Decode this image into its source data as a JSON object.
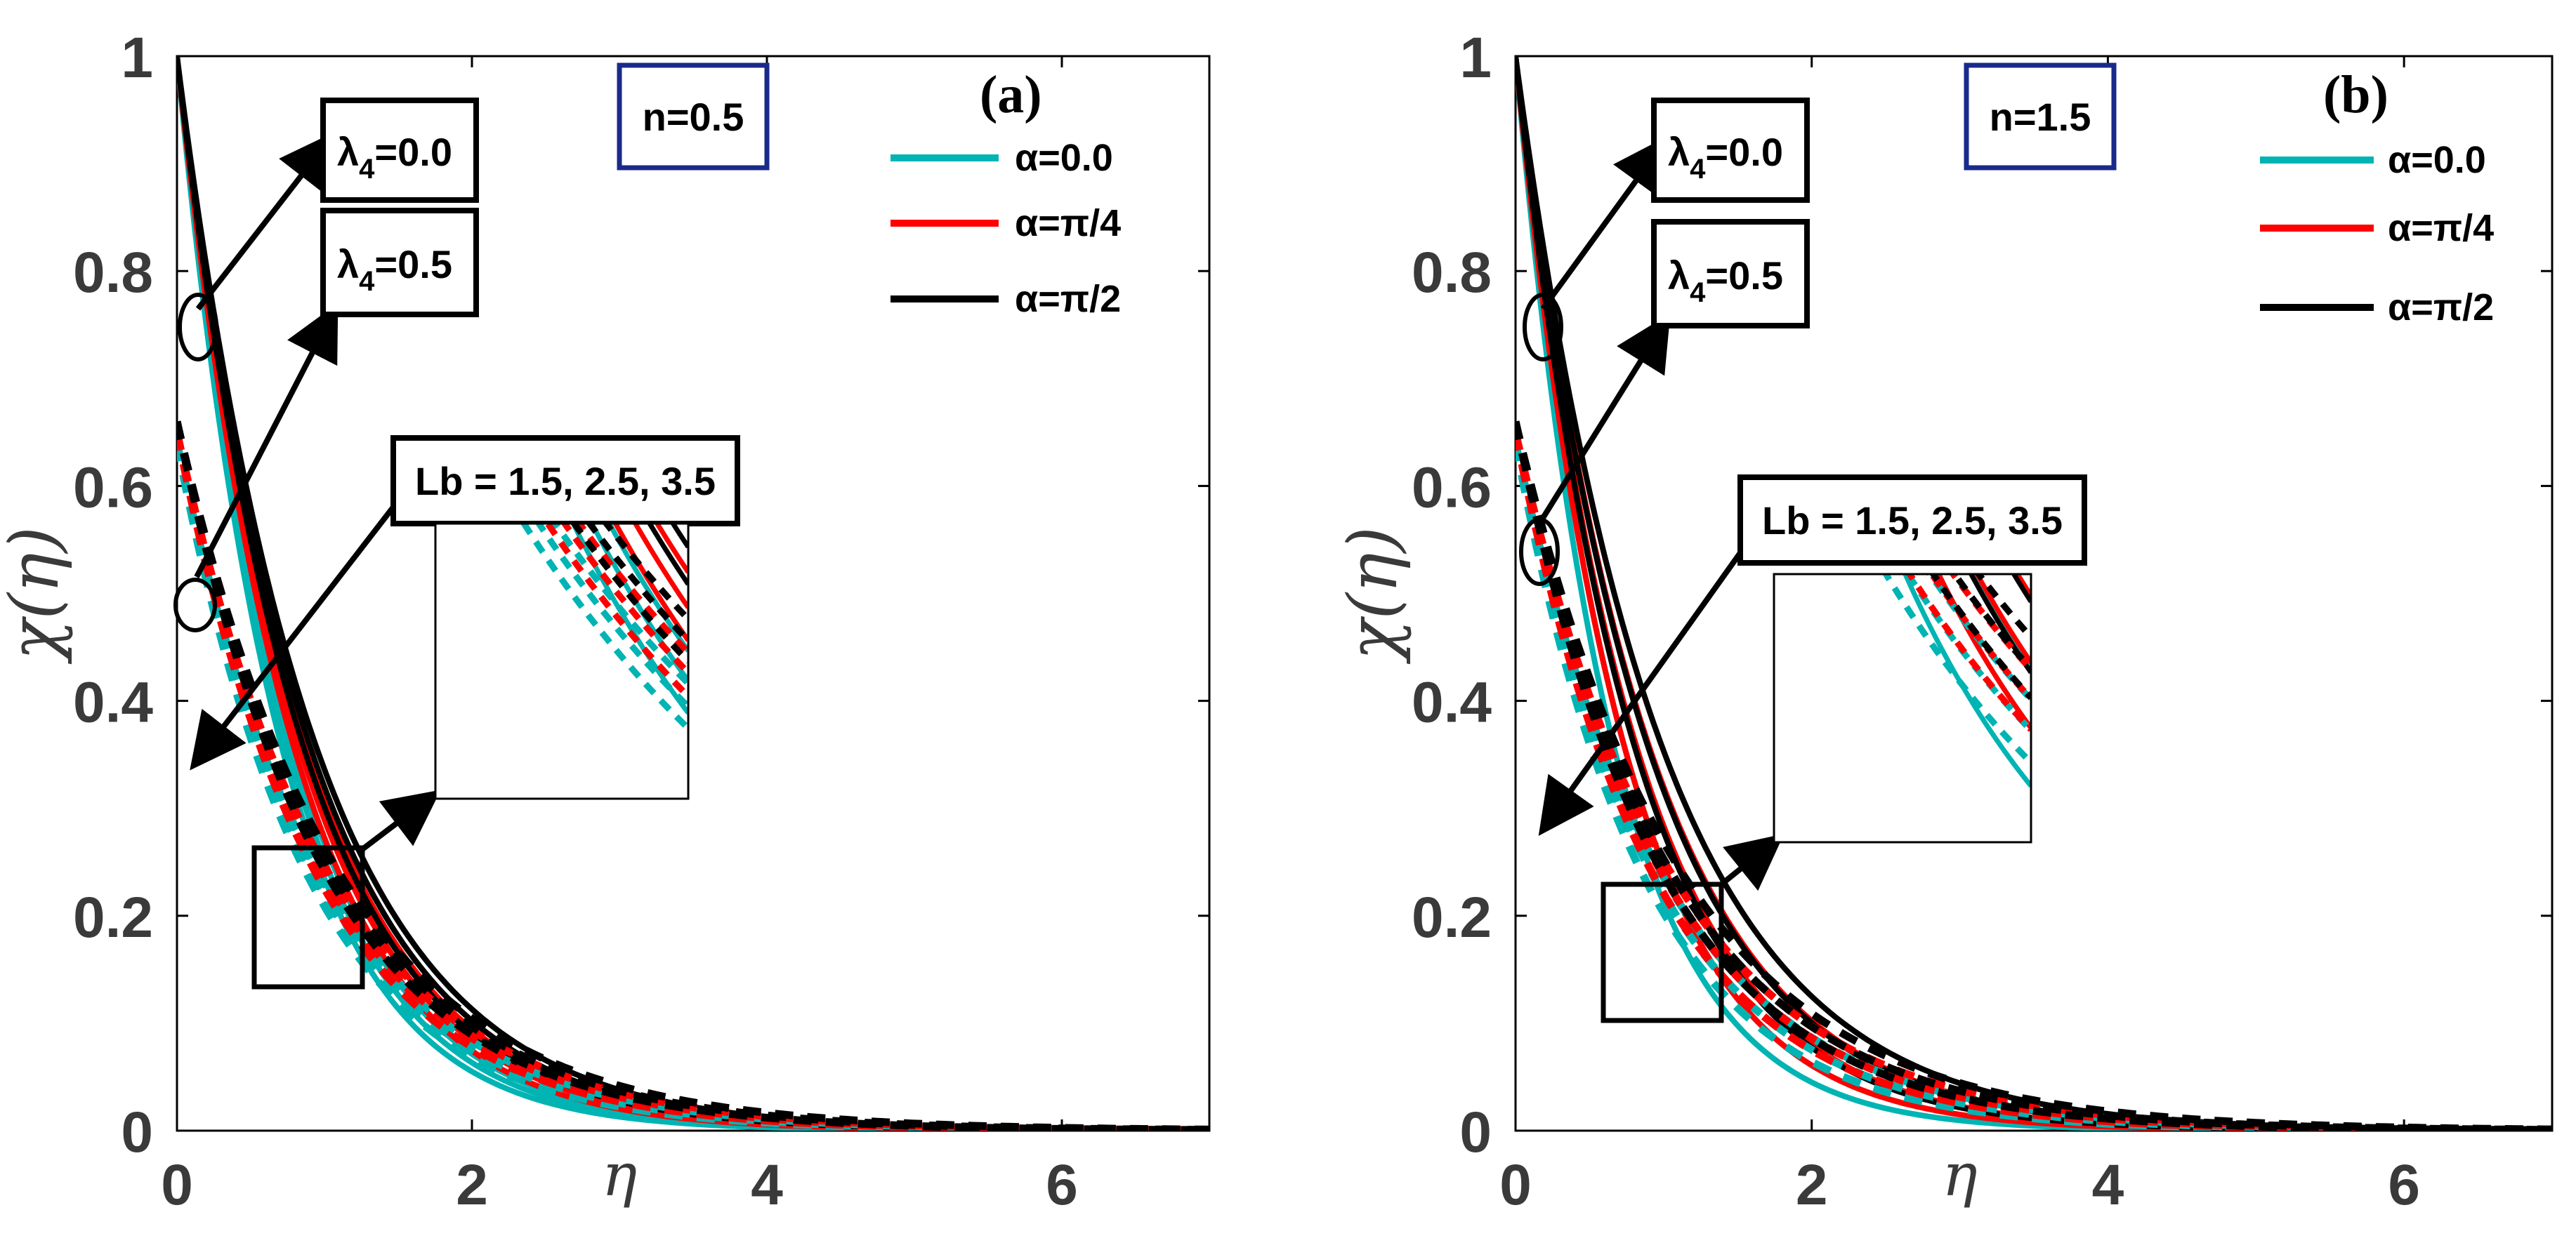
{
  "chart_data": [
    {
      "type": "line",
      "panel_label": "(a)",
      "param_box": "n=0.5",
      "xlabel": "η",
      "ylabel": "χ(η)",
      "xlim": [
        0,
        7
      ],
      "ylim": [
        0,
        1
      ],
      "xticks": [
        "0",
        "2",
        "4",
        "6"
      ],
      "yticks": [
        "0",
        "0.2",
        "0.4",
        "0.6",
        "0.8",
        "1"
      ],
      "legend": [
        {
          "label": "α=0.0",
          "color": "#00b4b4"
        },
        {
          "label": "α=π/4",
          "color": "#ff0000"
        },
        {
          "label": "α=π/2",
          "color": "#000000"
        }
      ],
      "annotations": {
        "lambda_solid": {
          "prefix": "λ",
          "sub": "4",
          "suffix": "=0.0"
        },
        "lambda_dashed": {
          "prefix": "λ",
          "sub": "4",
          "suffix": "=0.5"
        },
        "lb_label": "Lb = 1.5, 2.5, 3.5"
      },
      "series": [
        {
          "name": "α=0.0, λ4=0.0",
          "alpha": "0.0",
          "lambda4": 0.0,
          "style": "solid",
          "color": "#00b4b4",
          "y0": 1.0,
          "decay": [
            1.45,
            1.38,
            1.32
          ]
        },
        {
          "name": "α=π/4, λ4=0.0",
          "alpha": "π/4",
          "lambda4": 0.0,
          "style": "solid",
          "color": "#ff0000",
          "y0": 1.0,
          "decay": [
            1.3,
            1.24,
            1.18
          ]
        },
        {
          "name": "α=π/2, λ4=0.0",
          "alpha": "π/2",
          "lambda4": 0.0,
          "style": "solid",
          "color": "#000000",
          "y0": 1.0,
          "decay": [
            1.2,
            1.14,
            1.09
          ]
        },
        {
          "name": "α=0.0, λ4=0.5",
          "alpha": "0.0",
          "lambda4": 0.5,
          "style": "dashed",
          "color": "#00b4b4",
          "y0": 0.64,
          "decay": [
            1.12,
            1.07,
            1.02
          ]
        },
        {
          "name": "α=π/4, λ4=0.5",
          "alpha": "π/4",
          "lambda4": 0.5,
          "style": "dashed",
          "color": "#ff0000",
          "y0": 0.65,
          "decay": [
            1.06,
            1.01,
            0.97
          ]
        },
        {
          "name": "α=π/2, λ4=0.5",
          "alpha": "π/2",
          "lambda4": 0.5,
          "style": "dashed",
          "color": "#000000",
          "y0": 0.66,
          "decay": [
            1.0,
            0.96,
            0.92
          ]
        }
      ]
    },
    {
      "type": "line",
      "panel_label": "(b)",
      "param_box": "n=1.5",
      "xlabel": "η",
      "ylabel": "χ(η)",
      "xlim": [
        0,
        7
      ],
      "ylim": [
        0,
        1
      ],
      "xticks": [
        "0",
        "2",
        "4",
        "6"
      ],
      "yticks": [
        "0",
        "0.2",
        "0.4",
        "0.6",
        "0.8",
        "1"
      ],
      "legend": [
        {
          "label": "α=0.0",
          "color": "#00b4b4"
        },
        {
          "label": "α=π/4",
          "color": "#ff0000"
        },
        {
          "label": "α=π/2",
          "color": "#000000"
        }
      ],
      "annotations": {
        "lambda_solid": {
          "prefix": "λ",
          "sub": "4",
          "suffix": "=0.0"
        },
        "lambda_dashed": {
          "prefix": "λ",
          "sub": "4",
          "suffix": "=0.5"
        },
        "lb_label": "Lb = 1.5, 2.5, 3.5"
      },
      "series": [
        {
          "name": "α=0.0, λ4=0.0",
          "alpha": "0.0",
          "lambda4": 0.0,
          "style": "solid",
          "color": "#00b4b4",
          "y0": 1.0,
          "decay": [
            1.55,
            1.4,
            1.27
          ]
        },
        {
          "name": "α=π/4, λ4=0.0",
          "alpha": "π/4",
          "lambda4": 0.0,
          "style": "solid",
          "color": "#ff0000",
          "y0": 1.0,
          "decay": [
            1.4,
            1.26,
            1.14
          ]
        },
        {
          "name": "α=π/2, λ4=0.0",
          "alpha": "π/2",
          "lambda4": 0.0,
          "style": "solid",
          "color": "#000000",
          "y0": 1.0,
          "decay": [
            1.28,
            1.15,
            1.04
          ]
        },
        {
          "name": "α=0.0, λ4=0.5",
          "alpha": "0.0",
          "lambda4": 0.5,
          "style": "dashed",
          "color": "#00b4b4",
          "y0": 0.64,
          "decay": [
            1.15,
            1.07,
            1.0
          ]
        },
        {
          "name": "α=π/4, λ4=0.5",
          "alpha": "π/4",
          "lambda4": 0.5,
          "style": "dashed",
          "color": "#ff0000",
          "y0": 0.65,
          "decay": [
            1.08,
            1.01,
            0.95
          ]
        },
        {
          "name": "α=π/2, λ4=0.5",
          "alpha": "π/2",
          "lambda4": 0.5,
          "style": "dashed",
          "color": "#000000",
          "y0": 0.66,
          "decay": [
            1.02,
            0.96,
            0.9
          ]
        }
      ]
    }
  ]
}
